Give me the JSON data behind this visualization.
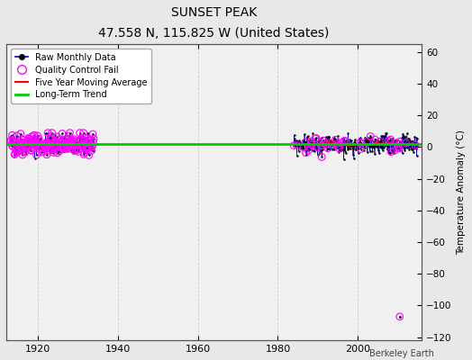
{
  "title": "SUNSET PEAK",
  "subtitle": "47.558 N, 115.825 W (United States)",
  "ylabel": "Temperature Anomaly (°C)",
  "attribution": "Berkeley Earth",
  "xlim": [
    1912,
    2016
  ],
  "ylim": [
    -122,
    65
  ],
  "yticks": [
    60,
    40,
    20,
    0,
    -20,
    -40,
    -60,
    -80,
    -100,
    -120
  ],
  "xticks": [
    1920,
    1940,
    1960,
    1980,
    2000
  ],
  "background_color": "#e8e8e8",
  "plot_background": "#f0f0f0",
  "grid_color": "#d0d0d0",
  "colors": {
    "raw_line": "#0000cc",
    "raw_dots": "#000000",
    "qc_fail": "#ff00ff",
    "moving_avg": "#ff0000",
    "trend": "#00cc00"
  },
  "long_term_trend_y": 2.0,
  "outlier_x": 2010.5,
  "outlier_y": -107,
  "early_start": 1913,
  "early_end": 1934,
  "late_start": 1984,
  "late_end": 2015,
  "seed_early": 42,
  "seed_late": 99
}
